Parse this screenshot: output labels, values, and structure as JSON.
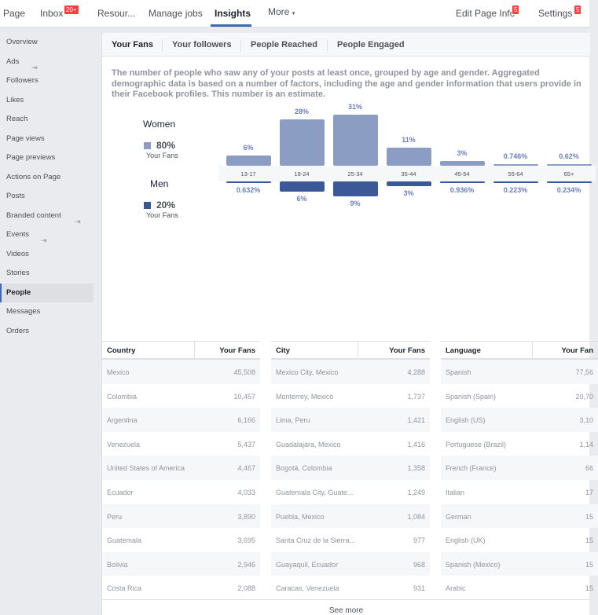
{
  "topnav": {
    "page": "Page",
    "inbox": "Inbox",
    "inbox_badge": "20+",
    "resources": "Resour...",
    "manage_jobs": "Manage jobs",
    "insights": "Insights",
    "more": "More",
    "edit_page_info": "Edit Page Info",
    "edit_badge": "5",
    "settings": "Settings",
    "settings_badge": "5"
  },
  "sidebar": {
    "items": [
      {
        "label": "Overview"
      },
      {
        "label": "Ads"
      },
      {
        "label": "Followers"
      },
      {
        "label": "Likes"
      },
      {
        "label": "Reach"
      },
      {
        "label": "Page views"
      },
      {
        "label": "Page previews"
      },
      {
        "label": "Actions on Page"
      },
      {
        "label": "Posts"
      },
      {
        "label": "Branded content"
      },
      {
        "label": "Events"
      },
      {
        "label": "Videos"
      },
      {
        "label": "Stories"
      },
      {
        "label": "People"
      },
      {
        "label": "Messages"
      },
      {
        "label": "Orders"
      }
    ],
    "active": "People"
  },
  "tabs": {
    "fans": "Your Fans",
    "followers": "Your followers",
    "reached": "People Reached",
    "engaged": "People Engaged"
  },
  "description": "The number of people who saw any of your posts at least once, grouped by age and gender. Aggregated demographic data is based on a number of factors, including the age and gender information that users provide in their Facebook profiles. This number is an estimate.",
  "legend": {
    "women_label": "Women",
    "women_pct": "80%",
    "women_sub": "Your Fans",
    "men_label": "Men",
    "men_pct": "20%",
    "men_sub": "Your Fans"
  },
  "colors": {
    "women": "#8b9dc3",
    "men": "#3b5998",
    "accent": "#4267b2"
  },
  "chart_data": {
    "type": "bar",
    "categories": [
      "13-17",
      "18-24",
      "25-34",
      "35-44",
      "45-54",
      "55-64",
      "65+"
    ],
    "series": [
      {
        "name": "Women",
        "values": [
          6,
          28,
          31,
          11,
          3,
          0.746,
          0.62
        ],
        "labels": [
          "6%",
          "28%",
          "31%",
          "11%",
          "3%",
          "0.746%",
          "0.62%"
        ]
      },
      {
        "name": "Men",
        "values": [
          0.632,
          6,
          9,
          3,
          0.936,
          0.223,
          0.234
        ],
        "labels": [
          "0.632%",
          "6%",
          "9%",
          "3%",
          "0.936%",
          "0.223%",
          "0.234%"
        ]
      }
    ]
  },
  "tables": {
    "country": {
      "headers": [
        "Country",
        "Your Fans"
      ],
      "rows": [
        [
          "Mexico",
          "45,508"
        ],
        [
          "Colombia",
          "10,457"
        ],
        [
          "Argentina",
          "6,166"
        ],
        [
          "Venezuela",
          "5,437"
        ],
        [
          "United States of America",
          "4,467"
        ],
        [
          "Ecuador",
          "4,033"
        ],
        [
          "Peru",
          "3,890"
        ],
        [
          "Guatemala",
          "3,695"
        ],
        [
          "Bolivia",
          "2,946"
        ],
        [
          "Costa Rica",
          "2,088"
        ]
      ]
    },
    "city": {
      "headers": [
        "City",
        "Your Fans"
      ],
      "rows": [
        [
          "Mexico City, Mexico",
          "4,288"
        ],
        [
          "Monterrey, Mexico",
          "1,737"
        ],
        [
          "Lima, Peru",
          "1,421"
        ],
        [
          "Guadalajara, Mexico",
          "1,416"
        ],
        [
          "Bogotá, Colombia",
          "1,358"
        ],
        [
          "Guatemala City, Guate...",
          "1,249"
        ],
        [
          "Puebla, Mexico",
          "1,084"
        ],
        [
          "Santa Cruz de la Sierra...",
          "977"
        ],
        [
          "Guayaquil, Ecuador",
          "968"
        ],
        [
          "Caracas, Venezuela",
          "931"
        ]
      ]
    },
    "language": {
      "headers": [
        "Language",
        "Your Fan"
      ],
      "rows": [
        [
          "Spanish",
          "77,56"
        ],
        [
          "Spanish (Spain)",
          "20,70"
        ],
        [
          "English (US)",
          "3,10"
        ],
        [
          "Portuguese (Brazil)",
          "1,14"
        ],
        [
          "French (France)",
          "66"
        ],
        [
          "Italian",
          "17"
        ],
        [
          "German",
          "15"
        ],
        [
          "English (UK)",
          "15"
        ],
        [
          "Spanish (Mexico)",
          "15"
        ],
        [
          "Arabic",
          "15"
        ]
      ]
    }
  },
  "see_more": "See more"
}
